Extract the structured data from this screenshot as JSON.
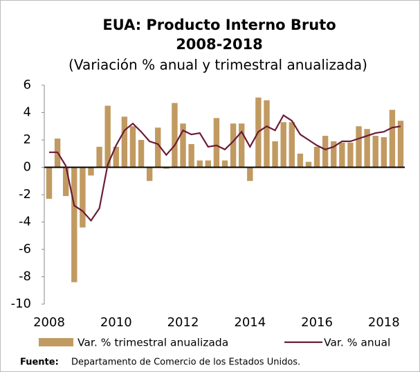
{
  "chart_data": {
    "type": "bar",
    "title": [
      "EUA: Producto Interno Bruto",
      "2008-2018"
    ],
    "subtitle": "(Variación % anual y trimestral anualizada)",
    "categories": [
      "2008",
      null,
      null,
      null,
      null,
      null,
      null,
      null,
      "2010",
      null,
      null,
      null,
      null,
      null,
      null,
      null,
      "2012",
      null,
      null,
      null,
      null,
      null,
      null,
      null,
      "2014",
      null,
      null,
      null,
      null,
      null,
      null,
      null,
      "2016",
      null,
      null,
      null,
      null,
      null,
      null,
      null,
      "2018",
      null,
      null
    ],
    "series": [
      {
        "name": "Var. % trimestral anualizada",
        "type": "bar",
        "color": "#c19a62",
        "values": [
          -2.3,
          2.1,
          -2.1,
          -8.4,
          -4.4,
          -0.6,
          1.5,
          4.5,
          1.5,
          3.7,
          3.0,
          2.0,
          -1.0,
          2.9,
          -0.1,
          4.7,
          3.2,
          1.7,
          0.5,
          0.5,
          3.6,
          0.5,
          3.2,
          3.2,
          -1.0,
          5.1,
          4.9,
          1.9,
          3.3,
          3.3,
          1.0,
          0.4,
          1.5,
          2.3,
          1.9,
          1.8,
          1.8,
          3.0,
          2.8,
          2.3,
          2.2,
          4.2,
          3.4
        ]
      },
      {
        "name": "Var. % anual",
        "type": "line",
        "color": "#6b1a36",
        "values": [
          1.1,
          1.1,
          0.1,
          -2.8,
          -3.2,
          -3.9,
          -3.0,
          0.2,
          1.6,
          2.7,
          3.2,
          2.6,
          1.9,
          1.7,
          0.9,
          1.6,
          2.7,
          2.4,
          2.5,
          1.5,
          1.6,
          1.3,
          1.9,
          2.6,
          1.5,
          2.6,
          3.0,
          2.7,
          3.8,
          3.4,
          2.4,
          2.0,
          1.6,
          1.3,
          1.5,
          1.9,
          1.9,
          2.1,
          2.3,
          2.5,
          2.6,
          2.9,
          3.0
        ]
      }
    ],
    "ylim": [
      -10,
      6
    ],
    "yticks": [
      -10,
      -8,
      -6,
      -4,
      -2,
      0,
      2,
      4,
      6
    ],
    "source": {
      "label": "Fuente:",
      "text": "Departamento de Comercio de los Estados Unidos."
    }
  }
}
